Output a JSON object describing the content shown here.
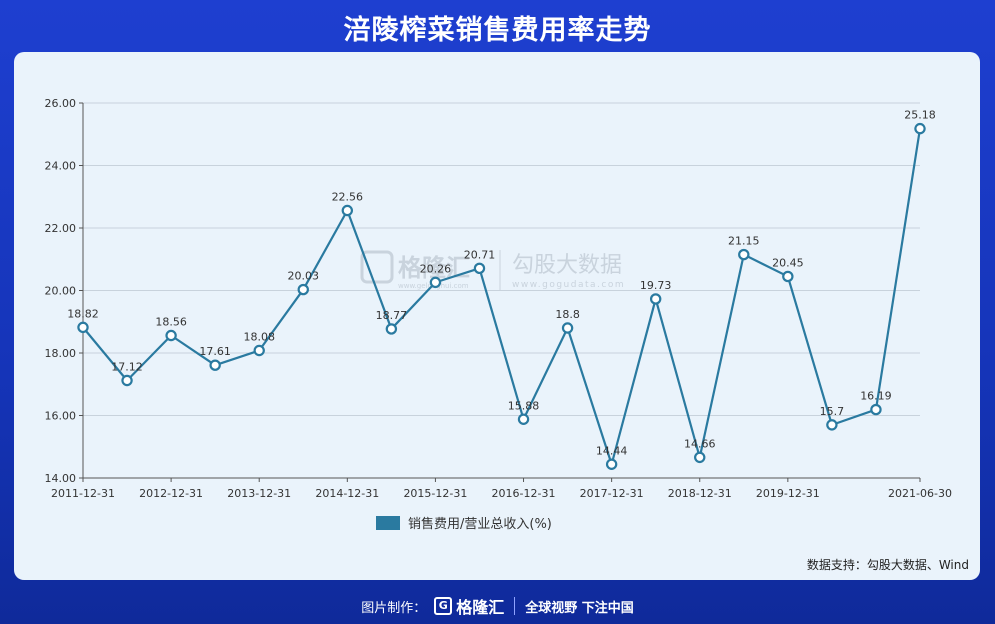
{
  "page": {
    "title": "涪陵榨菜销售费用率走势",
    "source_note": "数据支持：勾股大数据、Wind",
    "footer_credit": "图片制作：",
    "footer_brand": "格隆汇",
    "footer_slogan": "全球视野 下注中国",
    "watermark_brand": "格隆汇",
    "watermark_brand_sub": "www.gelonghui.com",
    "watermark_data": "勾股大数据",
    "watermark_data_url": "www.gogudata.com"
  },
  "colors": {
    "background": "#1a3bc4",
    "card": "#eaf3fb",
    "line": "#2a7aa0",
    "legend": "#2a7aa0"
  },
  "chart_data": {
    "type": "line",
    "title": "涪陵榨菜销售费用率走势",
    "x": [
      "2011-12-31",
      "2012-06-30",
      "2012-12-31",
      "2013-06-30",
      "2013-12-31",
      "2014-06-30",
      "2014-12-31",
      "2015-06-30",
      "2015-12-31",
      "2016-06-30",
      "2016-12-31",
      "2017-06-30",
      "2017-12-31",
      "2018-06-30",
      "2018-12-31",
      "2019-06-30",
      "2019-12-31",
      "2020-06-30",
      "2020-12-31",
      "2021-06-30"
    ],
    "x_tick_labels": [
      "2011-12-31",
      "2012-12-31",
      "2013-12-31",
      "2014-12-31",
      "2015-12-31",
      "2016-12-31",
      "2017-12-31",
      "2018-12-31",
      "2019-12-31",
      "2021-06-30"
    ],
    "x_tick_indices": [
      0,
      2,
      4,
      6,
      8,
      10,
      12,
      14,
      16,
      19
    ],
    "series": [
      {
        "name": "销售费用/营业总收入(%)",
        "values": [
          18.82,
          17.12,
          18.56,
          17.61,
          18.08,
          20.03,
          22.56,
          18.77,
          20.26,
          20.71,
          15.88,
          18.8,
          14.44,
          19.73,
          14.66,
          21.15,
          20.45,
          15.7,
          16.19,
          25.18
        ]
      }
    ],
    "data_labels": [
      "18.82",
      "17.12",
      "18.56",
      "17.61",
      "18.08",
      "20.03",
      "22.56",
      "18.77",
      "20.26",
      "20.71",
      "15.88",
      "18.8",
      "14.44",
      "19.73",
      "14.66",
      "21.15",
      "20.45",
      "15.7",
      "16.19",
      "25.18"
    ],
    "y_ticks": [
      "14.00",
      "16.00",
      "18.00",
      "20.00",
      "22.00",
      "24.00",
      "26.00"
    ],
    "ylim": [
      14,
      26
    ],
    "grid": true,
    "legend_position": "bottom-center"
  }
}
